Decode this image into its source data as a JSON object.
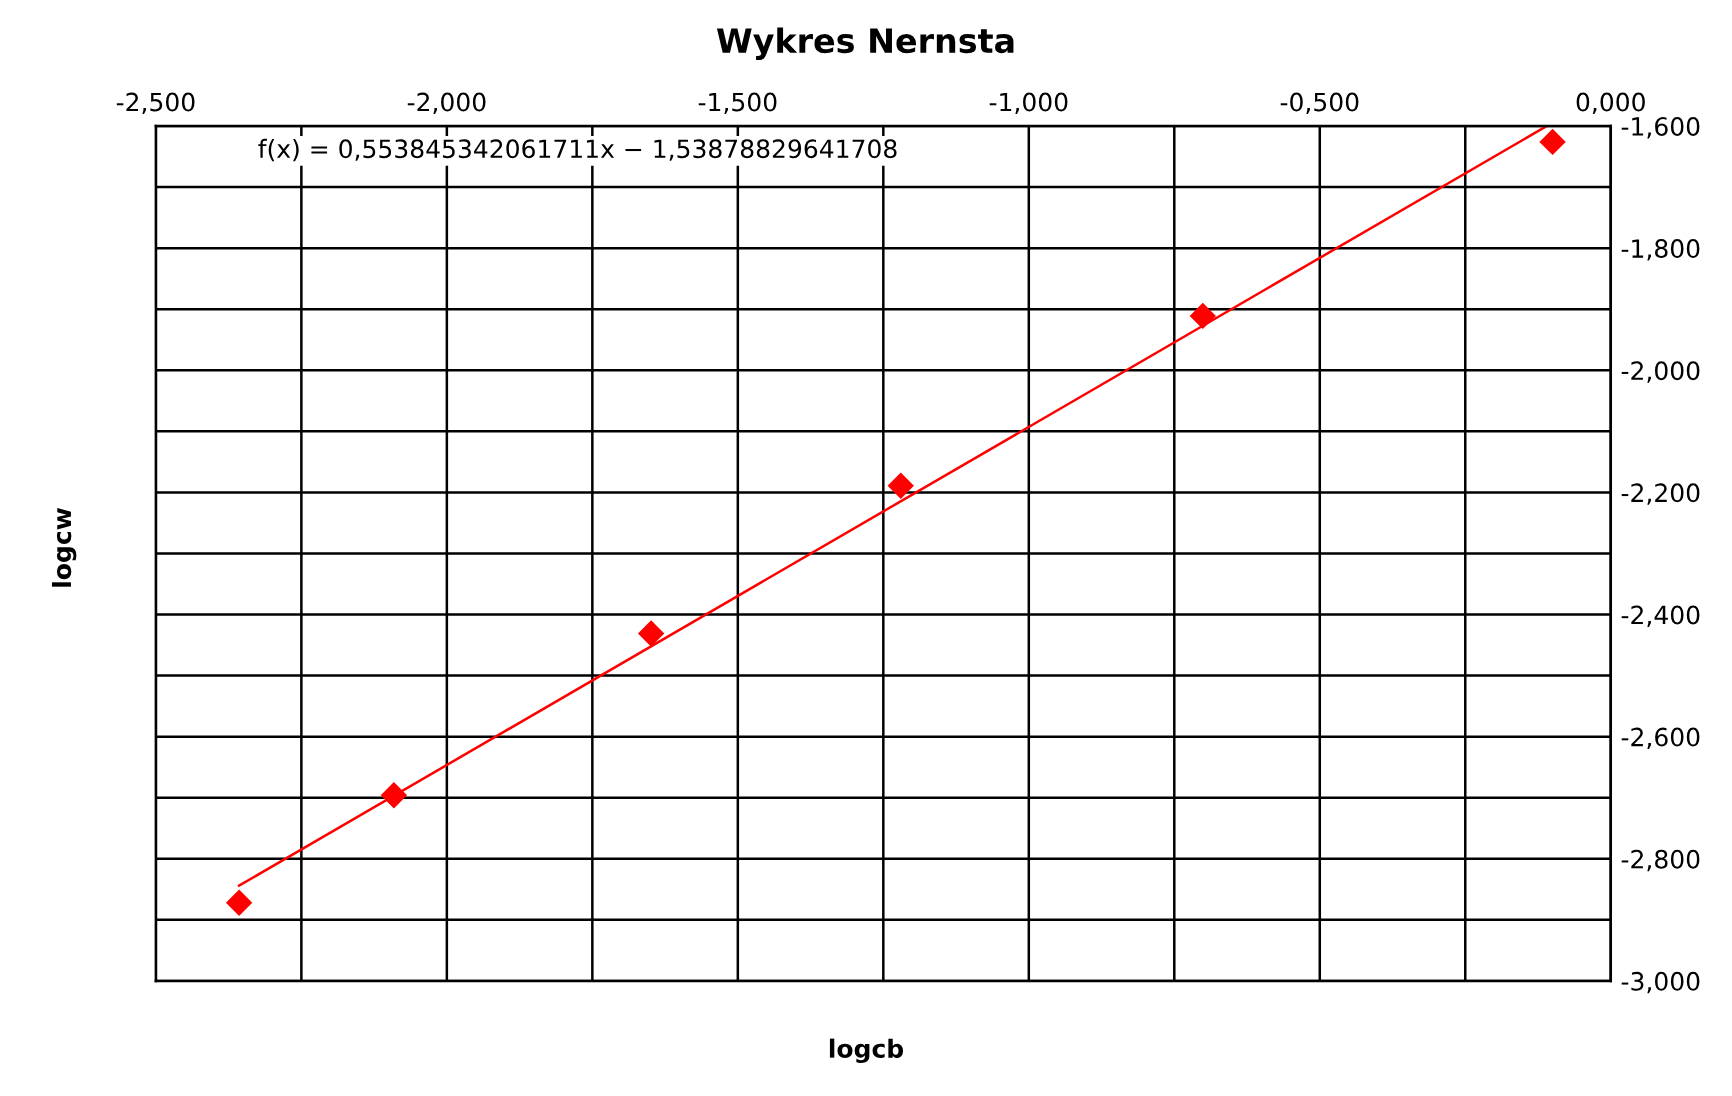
{
  "chart_data": {
    "type": "scatter",
    "title": "Wykres Nernsta",
    "xlabel": "logcb",
    "ylabel": "logcw",
    "annotations": [
      "f(x) = 0,553845342061711x − 1,53878829641708"
    ],
    "series": [
      {
        "color": "#ff0000",
        "marker": "diamond",
        "x": [
          -2.357,
          -2.091,
          -1.649,
          -1.22,
          -0.701,
          -0.1
        ],
        "values": [
          -2.872,
          -2.696,
          -2.431,
          -2.189,
          -1.911,
          -1.626
        ]
      },
      {
        "type": "line",
        "color": "#ff0000",
        "marker": "none",
        "line_style": "solid",
        "x": [
          -2.357,
          -0.11
        ],
        "values": [
          -2.844,
          -1.6
        ]
      }
    ],
    "xlim": [
      -2.5,
      0.0
    ],
    "xticks": [
      {
        "value": -2.5,
        "label": "-2,500"
      },
      {
        "value": -2.25,
        "label": null
      },
      {
        "value": -2.0,
        "label": "-2,000"
      },
      {
        "value": -1.75,
        "label": null
      },
      {
        "value": -1.5,
        "label": "-1,500"
      },
      {
        "value": -1.25,
        "label": null
      },
      {
        "value": -1.0,
        "label": "-1,000"
      },
      {
        "value": -0.75,
        "label": null
      },
      {
        "value": -0.5,
        "label": "-0,500"
      },
      {
        "value": -0.25,
        "label": null
      },
      {
        "value": 0.0,
        "label": "0,000"
      }
    ],
    "ylim": [
      -3.0,
      -1.6
    ],
    "yticks": [
      {
        "value": -3.0,
        "label": "-3,000"
      },
      {
        "value": -2.9,
        "label": null
      },
      {
        "value": -2.8,
        "label": "-2,800"
      },
      {
        "value": -2.7,
        "label": null
      },
      {
        "value": -2.6,
        "label": "-2,600"
      },
      {
        "value": -2.5,
        "label": null
      },
      {
        "value": -2.4,
        "label": "-2,400"
      },
      {
        "value": -2.3,
        "label": null
      },
      {
        "value": -2.2,
        "label": "-2,200"
      },
      {
        "value": -2.1,
        "label": null
      },
      {
        "value": -2.0,
        "label": "-2,000"
      },
      {
        "value": -1.9,
        "label": null
      },
      {
        "value": -1.8,
        "label": "-1,800"
      },
      {
        "value": -1.7,
        "label": null
      },
      {
        "value": -1.6,
        "label": "-1,600"
      }
    ],
    "grid": true,
    "legend": false
  }
}
